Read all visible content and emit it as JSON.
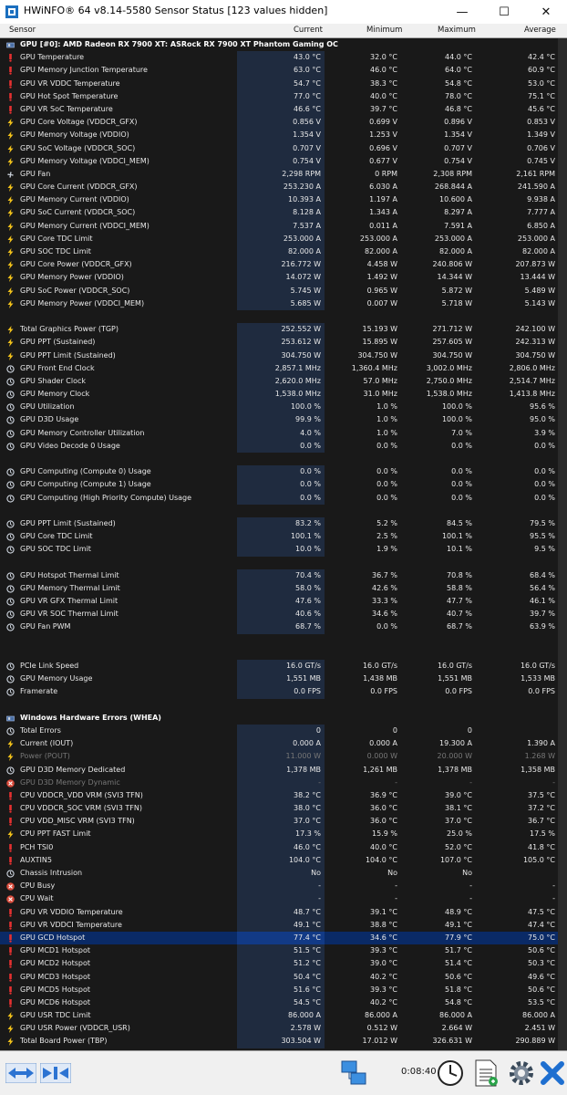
{
  "window": {
    "title": "HWiNFO® 64 v8.14-5580 Sensor Status [123 values hidden]"
  },
  "header": {
    "sensor": "Sensor",
    "current": "Current",
    "minimum": "Minimum",
    "maximum": "Maximum",
    "average": "Average"
  },
  "colors": {
    "current_bg": "#1f2b3f",
    "window_bg": "#191919",
    "warn_red": "#e53030",
    "bolt_yellow": "#f2c21a"
  },
  "rows": [
    {
      "type": "group",
      "label": "GPU [#0]: AMD Radeon RX 7900 XT: ASRock RX 7900 XT Phantom Gaming OC",
      "icon": "gpu-icon"
    },
    {
      "label": "GPU Temperature",
      "icon": "temp-icon",
      "cur": "43.0 °C",
      "min": "32.0 °C",
      "max": "44.0 °C",
      "avg": "42.4 °C"
    },
    {
      "label": "GPU Memory Junction Temperature",
      "icon": "temp-icon",
      "cur": "63.0 °C",
      "min": "46.0 °C",
      "max": "64.0 °C",
      "avg": "60.9 °C"
    },
    {
      "label": "GPU VR VDDC Temperature",
      "icon": "temp-icon",
      "cur": "54.7 °C",
      "min": "38.3 °C",
      "max": "54.8 °C",
      "avg": "53.0 °C"
    },
    {
      "label": "GPU Hot Spot Temperature",
      "icon": "temp-icon",
      "cur": "77.0 °C",
      "min": "40.0 °C",
      "max": "78.0 °C",
      "avg": "75.1 °C"
    },
    {
      "label": "GPU VR SoC Temperature",
      "icon": "temp-icon",
      "cur": "46.6 °C",
      "min": "39.7 °C",
      "max": "46.8 °C",
      "avg": "45.6 °C"
    },
    {
      "label": "GPU Core Voltage (VDDCR_GFX)",
      "icon": "bolt-icon",
      "cur": "0.856 V",
      "min": "0.699 V",
      "max": "0.896 V",
      "avg": "0.853 V"
    },
    {
      "label": "GPU Memory Voltage (VDDIO)",
      "icon": "bolt-icon",
      "cur": "1.354 V",
      "min": "1.253 V",
      "max": "1.354 V",
      "avg": "1.349 V"
    },
    {
      "label": "GPU SoC Voltage (VDDCR_SOC)",
      "icon": "bolt-icon",
      "cur": "0.707 V",
      "min": "0.696 V",
      "max": "0.707 V",
      "avg": "0.706 V"
    },
    {
      "label": "GPU Memory Voltage (VDDCI_MEM)",
      "icon": "bolt-icon",
      "cur": "0.754 V",
      "min": "0.677 V",
      "max": "0.754 V",
      "avg": "0.745 V"
    },
    {
      "label": "GPU Fan",
      "icon": "fan-icon",
      "cur": "2,298 RPM",
      "min": "0 RPM",
      "max": "2,308 RPM",
      "avg": "2,161 RPM"
    },
    {
      "label": "GPU Core Current (VDDCR_GFX)",
      "icon": "bolt-icon",
      "cur": "253.230 A",
      "min": "6.030 A",
      "max": "268.844 A",
      "avg": "241.590 A"
    },
    {
      "label": "GPU Memory Current (VDDIO)",
      "icon": "bolt-icon",
      "cur": "10.393 A",
      "min": "1.197 A",
      "max": "10.600 A",
      "avg": "9.938 A"
    },
    {
      "label": "GPU SoC Current (VDDCR_SOC)",
      "icon": "bolt-icon",
      "cur": "8.128 A",
      "min": "1.343 A",
      "max": "8.297 A",
      "avg": "7.777 A"
    },
    {
      "label": "GPU Memory Current (VDDCI_MEM)",
      "icon": "bolt-icon",
      "cur": "7.537 A",
      "min": "0.011 A",
      "max": "7.591 A",
      "avg": "6.850 A"
    },
    {
      "label": "GPU Core TDC Limit",
      "icon": "bolt-icon",
      "cur": "253.000 A",
      "min": "253.000 A",
      "max": "253.000 A",
      "avg": "253.000 A"
    },
    {
      "label": "GPU SOC TDC Limit",
      "icon": "bolt-icon",
      "cur": "82.000 A",
      "min": "82.000 A",
      "max": "82.000 A",
      "avg": "82.000 A"
    },
    {
      "label": "GPU Core Power (VDDCR_GFX)",
      "icon": "bolt-icon",
      "cur": "216.772 W",
      "min": "4.458 W",
      "max": "240.806 W",
      "avg": "207.873 W"
    },
    {
      "label": "GPU Memory Power (VDDIO)",
      "icon": "bolt-icon",
      "cur": "14.072 W",
      "min": "1.492 W",
      "max": "14.344 W",
      "avg": "13.444 W"
    },
    {
      "label": "GPU SoC Power (VDDCR_SOC)",
      "icon": "bolt-icon",
      "cur": "5.745 W",
      "min": "0.965 W",
      "max": "5.872 W",
      "avg": "5.489 W"
    },
    {
      "label": "GPU Memory Power (VDDCI_MEM)",
      "icon": "bolt-icon",
      "cur": "5.685 W",
      "min": "0.007 W",
      "max": "5.718 W",
      "avg": "5.143 W"
    },
    {
      "type": "spacer"
    },
    {
      "label": "Total Graphics Power (TGP)",
      "icon": "bolt-icon",
      "cur": "252.552 W",
      "min": "15.193 W",
      "max": "271.712 W",
      "avg": "242.100 W"
    },
    {
      "label": "GPU PPT (Sustained)",
      "icon": "bolt-icon",
      "cur": "253.612 W",
      "min": "15.895 W",
      "max": "257.605 W",
      "avg": "242.313 W"
    },
    {
      "label": "GPU PPT Limit (Sustained)",
      "icon": "bolt-icon",
      "cur": "304.750 W",
      "min": "304.750 W",
      "max": "304.750 W",
      "avg": "304.750 W"
    },
    {
      "label": "GPU Front End Clock",
      "icon": "clock-icon",
      "cur": "2,857.1 MHz",
      "min": "1,360.4 MHz",
      "max": "3,002.0 MHz",
      "avg": "2,806.0 MHz"
    },
    {
      "label": "GPU Shader Clock",
      "icon": "clock-icon",
      "cur": "2,620.0 MHz",
      "min": "57.0 MHz",
      "max": "2,750.0 MHz",
      "avg": "2,514.7 MHz"
    },
    {
      "label": "GPU Memory Clock",
      "icon": "clock-icon",
      "cur": "1,538.0 MHz",
      "min": "31.0 MHz",
      "max": "1,538.0 MHz",
      "avg": "1,413.8 MHz"
    },
    {
      "label": "GPU Utilization",
      "icon": "clock-icon",
      "cur": "100.0 %",
      "min": "1.0 %",
      "max": "100.0 %",
      "avg": "95.6 %"
    },
    {
      "label": "GPU D3D Usage",
      "icon": "clock-icon",
      "cur": "99.9 %",
      "min": "1.0 %",
      "max": "100.0 %",
      "avg": "95.0 %"
    },
    {
      "label": "GPU Memory Controller Utilization",
      "icon": "clock-icon",
      "cur": "4.0 %",
      "min": "1.0 %",
      "max": "7.0 %",
      "avg": "3.9 %"
    },
    {
      "label": "GPU Video Decode 0 Usage",
      "icon": "clock-icon",
      "cur": "0.0 %",
      "min": "0.0 %",
      "max": "0.0 %",
      "avg": "0.0 %"
    },
    {
      "type": "spacer"
    },
    {
      "label": "GPU Computing (Compute 0) Usage",
      "icon": "clock-icon",
      "cur": "0.0 %",
      "min": "0.0 %",
      "max": "0.0 %",
      "avg": "0.0 %"
    },
    {
      "label": "GPU Computing (Compute 1) Usage",
      "icon": "clock-icon",
      "cur": "0.0 %",
      "min": "0.0 %",
      "max": "0.0 %",
      "avg": "0.0 %"
    },
    {
      "label": "GPU Computing (High Priority Compute) Usage",
      "icon": "clock-icon",
      "cur": "0.0 %",
      "min": "0.0 %",
      "max": "0.0 %",
      "avg": "0.0 %"
    },
    {
      "type": "spacer"
    },
    {
      "label": "GPU PPT Limit (Sustained)",
      "icon": "clock-icon",
      "cur": "83.2 %",
      "min": "5.2 %",
      "max": "84.5 %",
      "avg": "79.5 %"
    },
    {
      "label": "GPU Core TDC Limit",
      "icon": "clock-icon",
      "cur": "100.1 %",
      "min": "2.5 %",
      "max": "100.1 %",
      "avg": "95.5 %"
    },
    {
      "label": "GPU SOC TDC Limit",
      "icon": "clock-icon",
      "cur": "10.0 %",
      "min": "1.9 %",
      "max": "10.1 %",
      "avg": "9.5 %"
    },
    {
      "type": "spacer"
    },
    {
      "label": "GPU Hotspot Thermal Limit",
      "icon": "clock-icon",
      "cur": "70.4 %",
      "min": "36.7 %",
      "max": "70.8 %",
      "avg": "68.4 %"
    },
    {
      "label": "GPU Memory Thermal Limit",
      "icon": "clock-icon",
      "cur": "58.0 %",
      "min": "42.6 %",
      "max": "58.8 %",
      "avg": "56.4 %"
    },
    {
      "label": "GPU VR GFX Thermal Limit",
      "icon": "clock-icon",
      "cur": "47.6 %",
      "min": "33.3 %",
      "max": "47.7 %",
      "avg": "46.1 %"
    },
    {
      "label": "GPU VR SOC Thermal Limit",
      "icon": "clock-icon",
      "cur": "40.6 %",
      "min": "34.6 %",
      "max": "40.7 %",
      "avg": "39.7 %"
    },
    {
      "label": "GPU Fan PWM",
      "icon": "clock-icon",
      "cur": "68.7 %",
      "min": "0.0 %",
      "max": "68.7 %",
      "avg": "63.9 %"
    },
    {
      "type": "spacer"
    },
    {
      "type": "spacer"
    },
    {
      "label": "PCIe Link Speed",
      "icon": "clock-icon",
      "cur": "16.0 GT/s",
      "min": "16.0 GT/s",
      "max": "16.0 GT/s",
      "avg": "16.0 GT/s"
    },
    {
      "label": "GPU Memory Usage",
      "icon": "clock-icon",
      "cur": "1,551 MB",
      "min": "1,438 MB",
      "max": "1,551 MB",
      "avg": "1,533 MB"
    },
    {
      "label": "Framerate",
      "icon": "clock-icon",
      "cur": "0.0 FPS",
      "min": "0.0 FPS",
      "max": "0.0 FPS",
      "avg": "0.0 FPS"
    },
    {
      "type": "spacer"
    },
    {
      "type": "group",
      "label": "Windows Hardware Errors (WHEA)",
      "icon": "gpu-icon"
    },
    {
      "label": "Total Errors",
      "icon": "clock-icon",
      "cur": "0",
      "min": "0",
      "max": "0",
      "avg": ""
    },
    {
      "label": "Current (IOUT)",
      "icon": "bolt-icon",
      "cur": "0.000 A",
      "min": "0.000 A",
      "max": "19.300 A",
      "avg": "1.390 A"
    },
    {
      "label": "Power (POUT)",
      "icon": "bolt-icon",
      "dim": true,
      "cur": "11.000 W",
      "min": "0.000 W",
      "max": "20.000 W",
      "avg": "1.268 W"
    },
    {
      "label": "GPU D3D Memory Dedicated",
      "icon": "clock-icon",
      "cur": "1,378 MB",
      "min": "1,261 MB",
      "max": "1,378 MB",
      "avg": "1,358 MB"
    },
    {
      "label": "GPU D3D Memory Dynamic",
      "icon": "x-icon",
      "dim": true,
      "cur": "-",
      "min": "-",
      "max": "-",
      "avg": "-"
    },
    {
      "label": "CPU VDDCR_VDD VRM (SVI3 TFN)",
      "icon": "temp-icon",
      "cur": "38.2 °C",
      "min": "36.9 °C",
      "max": "39.0 °C",
      "avg": "37.5 °C"
    },
    {
      "label": "CPU VDDCR_SOC VRM (SVI3 TFN)",
      "icon": "temp-icon",
      "cur": "38.0 °C",
      "min": "36.0 °C",
      "max": "38.1 °C",
      "avg": "37.2 °C"
    },
    {
      "label": "CPU VDD_MISC VRM (SVI3 TFN)",
      "icon": "temp-icon",
      "cur": "37.0 °C",
      "min": "36.0 °C",
      "max": "37.0 °C",
      "avg": "36.7 °C"
    },
    {
      "label": "CPU PPT FAST Limit",
      "icon": "bolt-icon",
      "cur": "17.3 %",
      "min": "15.9 %",
      "max": "25.0 %",
      "avg": "17.5 %"
    },
    {
      "label": "PCH TSI0",
      "icon": "temp-icon",
      "cur": "46.0 °C",
      "min": "40.0 °C",
      "max": "52.0 °C",
      "avg": "41.8 °C"
    },
    {
      "label": "AUXTIN5",
      "icon": "temp-icon",
      "cur": "104.0 °C",
      "min": "104.0 °C",
      "max": "107.0 °C",
      "avg": "105.0 °C"
    },
    {
      "label": "Chassis Intrusion",
      "icon": "clock-icon",
      "cur": "No",
      "min": "No",
      "max": "No",
      "avg": ""
    },
    {
      "label": "CPU Busy",
      "icon": "x-icon",
      "cur": "-",
      "min": "-",
      "max": "-",
      "avg": "-"
    },
    {
      "label": "CPU Wait",
      "icon": "x-icon",
      "cur": "-",
      "min": "-",
      "max": "-",
      "avg": "-"
    },
    {
      "label": "GPU VR VDDIO Temperature",
      "icon": "temp-icon",
      "cur": "48.7 °C",
      "min": "39.1 °C",
      "max": "48.9 °C",
      "avg": "47.5 °C"
    },
    {
      "label": "GPU VR VDDCI Temperature",
      "icon": "temp-icon",
      "cur": "49.1 °C",
      "min": "38.8 °C",
      "max": "49.1 °C",
      "avg": "47.4 °C"
    },
    {
      "label": "GPU GCD Hotspot",
      "icon": "temp-icon",
      "selected": true,
      "cur": "77.4 °C",
      "min": "34.6 °C",
      "max": "77.9 °C",
      "avg": "75.0 °C"
    },
    {
      "label": "GPU MCD1 Hotspot",
      "icon": "temp-icon",
      "cur": "51.5 °C",
      "min": "39.3 °C",
      "max": "51.7 °C",
      "avg": "50.6 °C"
    },
    {
      "label": "GPU MCD2 Hotspot",
      "icon": "temp-icon",
      "cur": "51.2 °C",
      "min": "39.0 °C",
      "max": "51.4 °C",
      "avg": "50.3 °C"
    },
    {
      "label": "GPU MCD3 Hotspot",
      "icon": "temp-icon",
      "cur": "50.4 °C",
      "min": "40.2 °C",
      "max": "50.6 °C",
      "avg": "49.6 °C"
    },
    {
      "label": "GPU MCD5 Hotspot",
      "icon": "temp-icon",
      "cur": "51.6 °C",
      "min": "39.3 °C",
      "max": "51.8 °C",
      "avg": "50.6 °C"
    },
    {
      "label": "GPU MCD6 Hotspot",
      "icon": "temp-icon",
      "cur": "54.5 °C",
      "min": "40.2 °C",
      "max": "54.8 °C",
      "avg": "53.5 °C"
    },
    {
      "label": "GPU USR TDC Limit",
      "icon": "bolt-icon",
      "cur": "86.000 A",
      "min": "86.000 A",
      "max": "86.000 A",
      "avg": "86.000 A"
    },
    {
      "label": "GPU USR Power (VDDCR_USR)",
      "icon": "bolt-icon",
      "cur": "2.578 W",
      "min": "0.512 W",
      "max": "2.664 W",
      "avg": "2.451 W"
    },
    {
      "label": "Total Board Power (TBP)",
      "icon": "bolt-icon",
      "cur": "303.504 W",
      "min": "17.012 W",
      "max": "326.631 W",
      "avg": "290.889 W"
    }
  ],
  "statusbar": {
    "timer": "0:08:40",
    "buttons": [
      "nav-left-right-icon",
      "nav-collapse-icon",
      "network-icon",
      "clock-icon",
      "report-icon",
      "settings-icon",
      "close-icon"
    ]
  }
}
